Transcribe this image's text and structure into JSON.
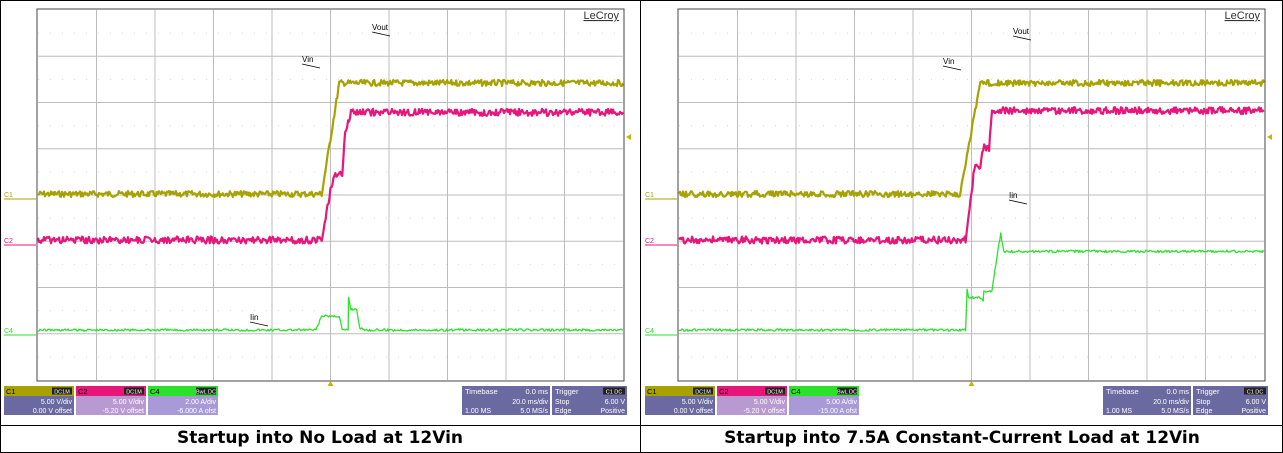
{
  "colors": {
    "c1": "#a8a200",
    "c2": "#e8157a",
    "c4": "#2ae22a",
    "grid": "#bdbdbd",
    "panel": "#6a6aa0",
    "panel_light": "#9090c0"
  },
  "brand": "LeCroy",
  "panels": [
    {
      "caption": "Startup into No Load at 12Vin",
      "labels": {
        "vout": "Vout",
        "vin": "Vin",
        "iin": "Iin"
      },
      "channels": {
        "c1": {
          "name": "C1",
          "coupling": "DC1M",
          "scale": "5.00 V/div",
          "offset": "0.00 V offset"
        },
        "c2": {
          "name": "C2",
          "coupling": "DC1M",
          "scale": "5.00 V/div",
          "offset": "-5.20 V offset"
        },
        "c4": {
          "name": "C4",
          "coupling": "BwL DC",
          "scale": "2.00 A/div",
          "offset": "-6.000 A ofst"
        }
      },
      "timebase": {
        "label": "Timebase",
        "delay": "0.0 ms",
        "div": "20.0 ms/div",
        "samples": "1.00 MS",
        "rate": "5.0 MS/s"
      },
      "trigger": {
        "label": "Trigger",
        "coupling": "C1 DC",
        "mode": "Stop",
        "level": "6.00 V",
        "type": "Edge",
        "slope": "Positive"
      }
    },
    {
      "caption": "Startup into 7.5A Constant-Current Load at 12Vin",
      "labels": {
        "vout": "Vout",
        "vin": "Vin",
        "iin": "Iin"
      },
      "channels": {
        "c1": {
          "name": "C1",
          "coupling": "DC1M",
          "scale": "5.00 V/div",
          "offset": "0.00 V offset"
        },
        "c2": {
          "name": "C2",
          "coupling": "DC1M",
          "scale": "5.00 V/div",
          "offset": "-5.20 V offset"
        },
        "c4": {
          "name": "C4",
          "coupling": "BwL DC",
          "scale": "5.00 A/div",
          "offset": "-15.00 A ofst"
        }
      },
      "timebase": {
        "label": "Timebase",
        "delay": "0.0 ms",
        "div": "20.0 ms/div",
        "samples": "1.00 MS",
        "rate": "5.0 MS/s"
      },
      "trigger": {
        "label": "Trigger",
        "coupling": "C1 DC",
        "mode": "Stop",
        "level": "6.00 V",
        "type": "Edge",
        "slope": "Positive"
      }
    }
  ],
  "chart_data": [
    {
      "type": "line",
      "title": "Startup into No Load at 12Vin",
      "x_unit": "ms",
      "xlim": [
        -100,
        100
      ],
      "grid": true,
      "series": [
        {
          "name": "Vin",
          "channel": "C1",
          "unit": "V",
          "x": [
            -100,
            -3,
            3,
            100
          ],
          "y": [
            0,
            0,
            12,
            12
          ]
        },
        {
          "name": "Vout",
          "channel": "C2",
          "unit": "V",
          "x": [
            -100,
            -3,
            0,
            2,
            4,
            5,
            7,
            100
          ],
          "y": [
            0,
            0,
            5.5,
            7.2,
            7.2,
            11.8,
            13.8,
            13.8
          ]
        },
        {
          "name": "Iin",
          "channel": "C4",
          "unit": "A",
          "x": [
            -100,
            -5,
            -3,
            0,
            3,
            4,
            6,
            6.2,
            7,
            9,
            10,
            11,
            12,
            100
          ],
          "y": [
            0,
            0,
            0.6,
            0.6,
            0.6,
            0,
            0,
            1.4,
            0.9,
            0.9,
            0.05,
            0.05,
            0,
            0
          ]
        }
      ]
    },
    {
      "type": "line",
      "title": "Startup into 7.5A Constant-Current Load at 12Vin",
      "x_unit": "ms",
      "xlim": [
        -100,
        100
      ],
      "grid": true,
      "series": [
        {
          "name": "Vin",
          "channel": "C1",
          "unit": "V",
          "x": [
            -100,
            -4,
            3,
            100
          ],
          "y": [
            0,
            0,
            12,
            12
          ]
        },
        {
          "name": "Vout",
          "channel": "C2",
          "unit": "V",
          "x": [
            -100,
            -2,
            1,
            3,
            4,
            6,
            7,
            100
          ],
          "y": [
            0,
            0,
            7.8,
            7.8,
            10,
            10,
            14,
            14
          ]
        },
        {
          "name": "Iin",
          "channel": "C4",
          "unit": "A",
          "x": [
            -100,
            -2,
            -1.5,
            -1,
            3,
            4,
            4.2,
            7,
            8,
            10,
            11,
            100
          ],
          "y": [
            0,
            0,
            4.5,
            3.5,
            3.5,
            3.2,
            4.2,
            4.2,
            6.5,
            10.5,
            8.5,
            8.5
          ]
        }
      ]
    }
  ]
}
